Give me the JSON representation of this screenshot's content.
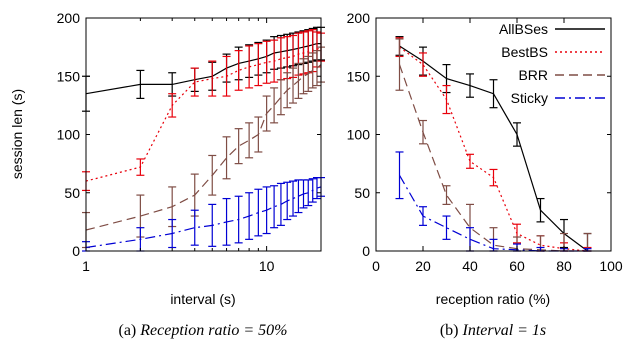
{
  "colors": {
    "AllBSes": "#000000",
    "BestBS": "#e8000b",
    "BRR": "#7f4d45",
    "Sticky": "#0000d4"
  },
  "legend": [
    "AllBSes",
    "BestBS",
    "BRR",
    "Sticky"
  ],
  "chart_data": [
    {
      "type": "line",
      "panel": "a",
      "caption_label": "(a) ",
      "caption_text": "Reception ratio = 50%",
      "xlabel": "interval (s)",
      "ylabel": "session len (s)",
      "xscale": "log",
      "xlim": [
        1,
        20
      ],
      "ylim": [
        0,
        200
      ],
      "xticks": [
        1,
        10
      ],
      "yticks": [
        0,
        50,
        100,
        150,
        200
      ],
      "grid": false,
      "x": [
        1,
        2,
        3,
        4,
        5,
        6,
        7,
        8,
        9,
        10,
        11,
        12,
        13,
        14,
        15,
        16,
        17,
        18,
        19,
        20
      ],
      "series": [
        {
          "name": "AllBSes",
          "style": "solid",
          "y": [
            135,
            143,
            143,
            147,
            150,
            157,
            161,
            163,
            165,
            167,
            170,
            171,
            172,
            173,
            174,
            175,
            176,
            177,
            178,
            178
          ],
          "err": [
            15,
            12,
            10,
            10,
            12,
            12,
            14,
            14,
            14,
            14,
            14,
            14,
            14,
            14,
            14,
            14,
            14,
            14,
            14,
            14
          ]
        },
        {
          "name": "BestBS",
          "style": "dot",
          "y": [
            60,
            72,
            125,
            145,
            148,
            150,
            155,
            158,
            160,
            162,
            163,
            165,
            166,
            167,
            169,
            170,
            171,
            172,
            173,
            175
          ],
          "err": [
            8,
            7,
            10,
            12,
            15,
            17,
            17,
            18,
            18,
            18,
            18,
            18,
            18,
            18,
            18,
            18,
            18,
            18,
            15,
            12
          ]
        },
        {
          "name": "BRR",
          "style": "dash",
          "y": [
            18,
            30,
            38,
            48,
            65,
            80,
            90,
            95,
            100,
            118,
            125,
            132,
            138,
            142,
            146,
            150,
            152,
            155,
            157,
            160
          ],
          "err": [
            15,
            18,
            17,
            18,
            17,
            18,
            15,
            15,
            15,
            15,
            15,
            15,
            15,
            15,
            15,
            15,
            15,
            15,
            15,
            15
          ]
        },
        {
          "name": "Sticky",
          "style": "dashdot",
          "y": [
            3,
            10,
            15,
            20,
            22,
            25,
            27,
            30,
            33,
            35,
            38,
            40,
            43,
            45,
            47,
            49,
            50,
            52,
            54,
            55
          ],
          "err": [
            5,
            10,
            12,
            15,
            18,
            20,
            20,
            20,
            20,
            20,
            18,
            18,
            16,
            15,
            14,
            12,
            11,
            10,
            9,
            8
          ]
        }
      ]
    },
    {
      "type": "line",
      "panel": "b",
      "caption_label": "(b) ",
      "caption_text": "Interval = 1s",
      "xlabel": "reception ratio (%)",
      "ylabel": "",
      "xscale": "linear",
      "xlim": [
        0,
        100
      ],
      "ylim": [
        0,
        200
      ],
      "xticks": [
        0,
        20,
        40,
        60,
        80,
        100
      ],
      "yticks": [
        0,
        50,
        100,
        150,
        200
      ],
      "grid": false,
      "x": [
        10,
        20,
        30,
        40,
        50,
        60,
        70,
        80,
        90
      ],
      "series": [
        {
          "name": "AllBSes",
          "style": "solid",
          "y": [
            176,
            163,
            148,
            142,
            135,
            100,
            35,
            15,
            0
          ],
          "err": [
            8,
            12,
            12,
            10,
            12,
            10,
            10,
            12,
            15
          ]
        },
        {
          "name": "BestBS",
          "style": "dot",
          "y": [
            175,
            160,
            130,
            77,
            63,
            15,
            5,
            2,
            0
          ],
          "err": [
            8,
            10,
            12,
            6,
            7,
            8,
            8,
            5,
            3
          ]
        },
        {
          "name": "BRR",
          "style": "dash",
          "y": [
            160,
            102,
            48,
            20,
            5,
            2,
            1,
            0,
            0
          ],
          "err": [
            22,
            10,
            8,
            20,
            15,
            10,
            12,
            15,
            15
          ]
        },
        {
          "name": "Sticky",
          "style": "dashdot",
          "y": [
            65,
            30,
            20,
            10,
            2,
            1,
            0,
            0,
            0
          ],
          "err": [
            20,
            8,
            10,
            10,
            8,
            5,
            3,
            2,
            2
          ]
        }
      ]
    }
  ]
}
